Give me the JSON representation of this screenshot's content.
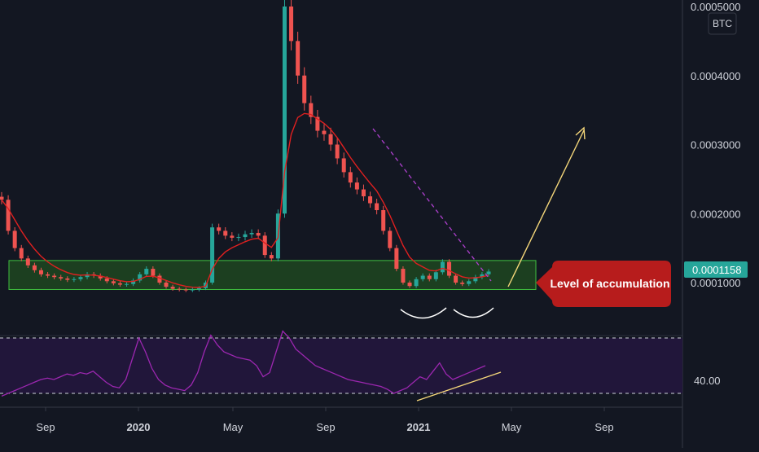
{
  "chart_data": [
    {
      "type": "candlestick",
      "title": "",
      "currency_badge": "BTC",
      "price_axis_ticks": [
        "0.0001000",
        "0.0002000",
        "0.0003000",
        "0.0004000",
        "0.0005000"
      ],
      "price_axis_values": [
        0.0001,
        0.0002,
        0.0003,
        0.0004,
        0.0005
      ],
      "ylim": [
        0.0,
        0.0005
      ],
      "last_price": "0.0001158",
      "time_axis_ticks": [
        {
          "label": "Sep",
          "bold": false
        },
        {
          "label": "2020",
          "bold": true
        },
        {
          "label": "May",
          "bold": false
        },
        {
          "label": "Sep",
          "bold": false
        },
        {
          "label": "2021",
          "bold": true
        },
        {
          "label": "May",
          "bold": false
        },
        {
          "label": "Sep",
          "bold": false
        }
      ],
      "close_series_approx": [
        0.00022,
        0.000175,
        0.00015,
        0.000135,
        0.000125,
        0.000118,
        0.000112,
        0.00011,
        0.000108,
        0.000106,
        0.000104,
        0.000105,
        0.000108,
        0.000112,
        0.00011,
        0.000106,
        0.000102,
        9.9e-05,
        9.7e-05,
        9.8e-05,
        0.000103,
        0.000112,
        0.00012,
        0.00011,
        0.0001,
        9.4e-05,
        9.1e-05,
        9e-05,
        8.9e-05,
        9e-05,
        9.2e-05,
        0.0001,
        0.00018,
        0.000175,
        0.000168,
        0.000165,
        0.000166,
        0.00017,
        0.000172,
        0.000168,
        0.00014,
        0.000135,
        0.0002,
        0.0005,
        0.00045,
        0.0004,
        0.00036,
        0.00034,
        0.00032,
        0.000315,
        0.0003,
        0.00028,
        0.00026,
        0.000245,
        0.000235,
        0.000225,
        0.000215,
        0.000205,
        0.000175,
        0.00015,
        0.00012,
        0.0001,
        9.5e-05,
        0.000105,
        0.00011,
        0.000105,
        0.000115,
        0.00013,
        0.00011,
        0.0001,
        9.8e-05,
        0.000102,
        0.000108,
        0.000112,
        0.000116
      ],
      "moving_average": "red line",
      "accumulation_zone": [
        9e-05,
        0.000132
      ],
      "annotations": [
        {
          "text": "Level of accumulation"
        }
      ]
    },
    {
      "type": "line",
      "indicator": "RSI",
      "axis_ticks": [
        "40.00"
      ],
      "axis_values": [
        40
      ],
      "levels": [
        30,
        70
      ],
      "ylim": [
        20,
        80
      ],
      "values": [
        28,
        30,
        32,
        34,
        36,
        38,
        40,
        41,
        40,
        42,
        44,
        43,
        45,
        44,
        46,
        42,
        38,
        35,
        34,
        40,
        55,
        70,
        60,
        48,
        40,
        36,
        34,
        33,
        32,
        36,
        45,
        60,
        72,
        65,
        60,
        58,
        56,
        55,
        54,
        50,
        42,
        45,
        60,
        75,
        70,
        62,
        58,
        54,
        50,
        48,
        46,
        44,
        42,
        40,
        39,
        38,
        37,
        36,
        35,
        33,
        30,
        32,
        34,
        38,
        42,
        40,
        46,
        52,
        44,
        40,
        42,
        44,
        46,
        48,
        50
      ]
    }
  ],
  "colors": {
    "background": "#131722",
    "bull": "#26a69a",
    "bear": "#ef5350",
    "moving_average": "#e02020",
    "zone_fill": "#1e4620",
    "zone_border": "#3fbf3f",
    "rsi_line": "#9c27b0",
    "rsi_band": "#21163a",
    "annotation_bg": "#b71c1c",
    "trendline": "#f5d77a",
    "downtrend": "#b040d0"
  }
}
